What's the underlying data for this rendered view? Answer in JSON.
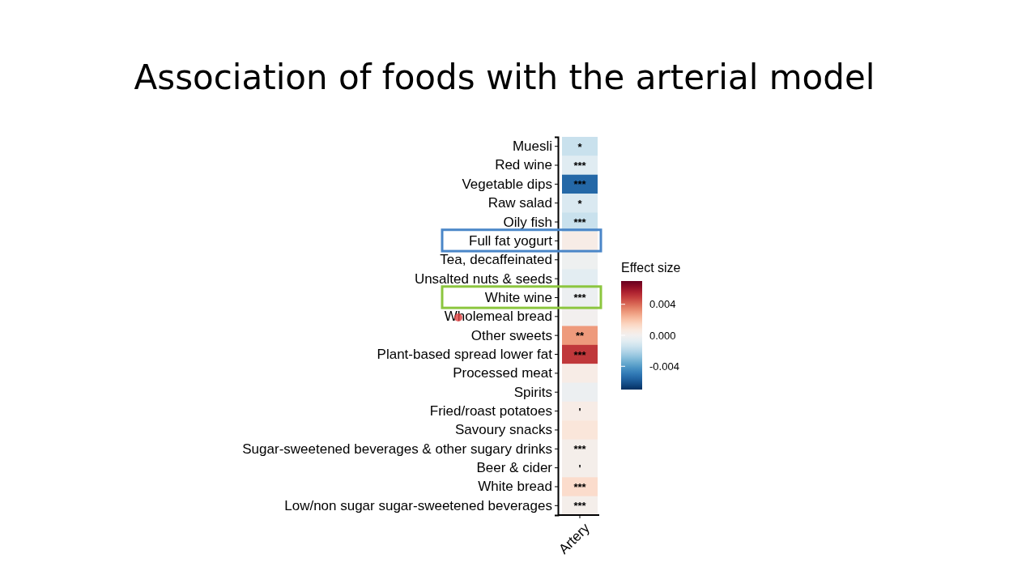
{
  "chart_data": {
    "type": "heatmap",
    "title": "Association of foods with the arterial model",
    "categories": [
      "Artery"
    ],
    "y_categories": [
      "Muesli",
      "Red wine",
      "Vegetable dips",
      "Raw salad",
      "Oily fish",
      "Full fat yogurt",
      "Tea, decaffeinated",
      "Unsalted nuts & seeds",
      "White wine",
      "Wholemeal bread",
      "Other sweets",
      "Plant-based spread lower fat",
      "Processed meat",
      "Spirits",
      "Fried/roast potatoes",
      "Savoury snacks",
      "Sugar-sweetened beverages & other sugary drinks",
      "Beer & cider",
      "White bread",
      "Low/non sugar sugar-sweetened beverages"
    ],
    "cells": [
      [
        -0.0015
      ],
      [
        -0.0008
      ],
      [
        -0.0055
      ],
      [
        -0.001
      ],
      [
        -0.0015
      ],
      [
        0.0004
      ],
      [
        -0.0002
      ],
      [
        -0.0007
      ],
      [
        -0.0003
      ],
      [
        0.0
      ],
      [
        0.003
      ],
      [
        0.005
      ],
      [
        0.0004
      ],
      [
        -0.0003
      ],
      [
        0.0004
      ],
      [
        0.0008
      ],
      [
        0.0002
      ],
      [
        0.0002
      ],
      [
        0.0012
      ],
      [
        0.0002
      ]
    ],
    "cell_labels": [
      [
        "*"
      ],
      [
        "***"
      ],
      [
        "***"
      ],
      [
        "*"
      ],
      [
        "***"
      ],
      [
        null
      ],
      [
        null
      ],
      [
        null
      ],
      [
        "***"
      ],
      [
        null
      ],
      [
        "**"
      ],
      [
        "***"
      ],
      [
        null
      ],
      [
        null
      ],
      [
        "'"
      ],
      [
        null
      ],
      [
        "***"
      ],
      [
        "'"
      ],
      [
        "***"
      ],
      [
        "***"
      ]
    ],
    "clabel": "Effect size",
    "clim": [
      -0.007,
      0.007
    ],
    "cticks": [
      {
        "value": 0.004,
        "label": "0.004"
      },
      {
        "value": 0.0,
        "label": "0.000"
      },
      {
        "value": -0.004,
        "label": "-0.004"
      }
    ]
  }
}
